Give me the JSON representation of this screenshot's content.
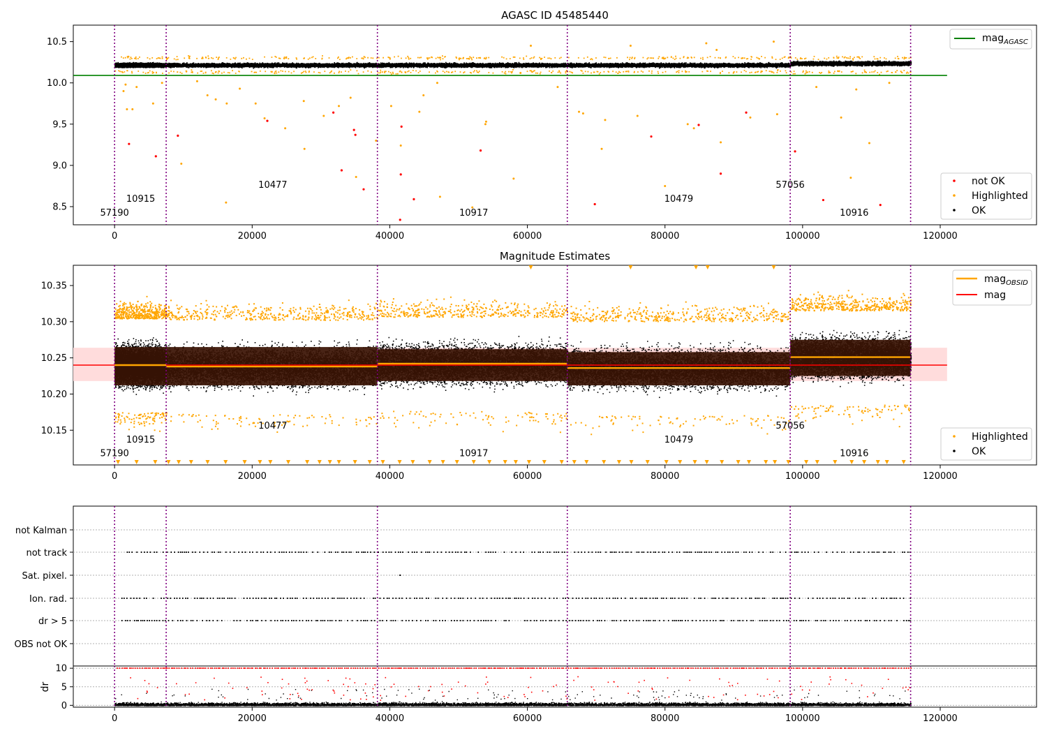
{
  "figure_title": "AGASC ID 45485440",
  "chart_data": [
    {
      "type": "scatter",
      "title": "",
      "xlim": [
        -6000,
        134000
      ],
      "ylim": [
        8.28,
        10.7
      ],
      "xticks": [
        0,
        20000,
        40000,
        60000,
        80000,
        100000,
        120000
      ],
      "xtick_labels": [
        "0",
        "20000",
        "40000",
        "60000",
        "80000",
        "100000",
        "120000"
      ],
      "yticks": [
        8.5,
        9.0,
        9.5,
        10.0,
        10.5
      ],
      "ytick_labels": [
        "8.5",
        "9.0",
        "9.5",
        "10.0",
        "10.5"
      ],
      "obsid_boundaries": [
        0,
        7500,
        38200,
        65800,
        98200,
        115700
      ],
      "obsid_labels": [
        {
          "text": "57190",
          "x": 0,
          "y": 8.39
        },
        {
          "text": "10915",
          "x": 3800,
          "y": 8.56
        },
        {
          "text": "10477",
          "x": 23000,
          "y": 8.73
        },
        {
          "text": "10917",
          "x": 52200,
          "y": 8.39
        },
        {
          "text": "10479",
          "x": 82000,
          "y": 8.56
        },
        {
          "text": "57056",
          "x": 98200,
          "y": 8.73
        },
        {
          "text": "10916",
          "x": 107500,
          "y": 8.39
        }
      ],
      "mag_agasc": 10.09,
      "band_center": 10.22,
      "band_half_width": 0.04,
      "series": [
        {
          "name": "mag$_{AGASC}$",
          "legend_label": "mag",
          "legend_sub": "AGASC",
          "color": "#008000",
          "kind": "line"
        },
        {
          "name": "not OK",
          "color": "#ff0000",
          "kind": "points",
          "points": [
            [
              2100,
              9.26
            ],
            [
              6000,
              9.11
            ],
            [
              9200,
              9.36
            ],
            [
              22200,
              9.54
            ],
            [
              31800,
              9.64
            ],
            [
              33000,
              8.94
            ],
            [
              34800,
              9.43
            ],
            [
              35000,
              9.37
            ],
            [
              36200,
              8.71
            ],
            [
              41500,
              8.34
            ],
            [
              41600,
              8.89
            ],
            [
              41700,
              9.47
            ],
            [
              43500,
              8.59
            ],
            [
              53200,
              9.18
            ],
            [
              69800,
              8.53
            ],
            [
              78000,
              9.35
            ],
            [
              84900,
              9.49
            ],
            [
              88100,
              8.9
            ],
            [
              91800,
              9.64
            ],
            [
              98900,
              9.17
            ],
            [
              103000,
              8.58
            ],
            [
              111300,
              8.52
            ]
          ]
        },
        {
          "name": "Highlighted",
          "color": "#ffa500",
          "kind": "points",
          "points": [
            [
              1300,
              9.9
            ],
            [
              1600,
              9.98
            ],
            [
              1800,
              9.68
            ],
            [
              2600,
              9.68
            ],
            [
              3200,
              9.95
            ],
            [
              5600,
              9.75
            ],
            [
              6900,
              10.0
            ],
            [
              9700,
              9.02
            ],
            [
              12000,
              10.02
            ],
            [
              13500,
              9.85
            ],
            [
              14700,
              9.8
            ],
            [
              16200,
              8.55
            ],
            [
              16300,
              9.75
            ],
            [
              18200,
              9.93
            ],
            [
              20500,
              9.75
            ],
            [
              21800,
              9.57
            ],
            [
              24800,
              9.45
            ],
            [
              27500,
              9.78
            ],
            [
              27600,
              9.2
            ],
            [
              30400,
              9.6
            ],
            [
              32600,
              9.72
            ],
            [
              34300,
              9.82
            ],
            [
              35100,
              8.86
            ],
            [
              38000,
              9.3
            ],
            [
              40200,
              9.72
            ],
            [
              41600,
              9.24
            ],
            [
              44300,
              9.65
            ],
            [
              44900,
              9.85
            ],
            [
              46900,
              10.0
            ],
            [
              47300,
              8.62
            ],
            [
              52000,
              8.49
            ],
            [
              53900,
              9.5
            ],
            [
              54000,
              9.53
            ],
            [
              58000,
              8.84
            ],
            [
              59000,
              10.12
            ],
            [
              60500,
              10.45
            ],
            [
              64400,
              9.95
            ],
            [
              67500,
              9.65
            ],
            [
              68100,
              9.63
            ],
            [
              70800,
              9.2
            ],
            [
              71300,
              9.55
            ],
            [
              75000,
              10.45
            ],
            [
              76000,
              9.6
            ],
            [
              80000,
              8.75
            ],
            [
              83300,
              9.5
            ],
            [
              84200,
              9.45
            ],
            [
              86000,
              10.48
            ],
            [
              87500,
              10.4
            ],
            [
              88100,
              9.28
            ],
            [
              92400,
              9.58
            ],
            [
              95800,
              10.5
            ],
            [
              96300,
              9.62
            ],
            [
              102000,
              9.95
            ],
            [
              105600,
              9.58
            ],
            [
              107000,
              8.85
            ],
            [
              107800,
              9.92
            ],
            [
              109700,
              9.27
            ],
            [
              112600,
              10.0
            ]
          ]
        },
        {
          "name": "OK",
          "color": "#000000",
          "kind": "band"
        }
      ],
      "legends": [
        [
          "mag$_{AGASC}$"
        ],
        [
          "not OK",
          "Highlighted",
          "OK"
        ]
      ]
    },
    {
      "type": "scatter",
      "title": "Magnitude Estimates",
      "xlim": [
        -6000,
        134000
      ],
      "ylim": [
        10.102,
        10.378
      ],
      "xticks": [
        0,
        20000,
        40000,
        60000,
        80000,
        100000,
        120000
      ],
      "xtick_labels": [
        "0",
        "20000",
        "40000",
        "60000",
        "80000",
        "100000",
        "120000"
      ],
      "yticks": [
        10.15,
        10.2,
        10.25,
        10.3,
        10.35
      ],
      "ytick_labels": [
        "10.15",
        "10.20",
        "10.25",
        "10.30",
        "10.35"
      ],
      "obsid_labels": [
        {
          "text": "57190",
          "x": 0,
          "y": 10.114
        },
        {
          "text": "10915",
          "x": 3800,
          "y": 10.133
        },
        {
          "text": "10477",
          "x": 23000,
          "y": 10.152
        },
        {
          "text": "10917",
          "x": 52200,
          "y": 10.114
        },
        {
          "text": "10479",
          "x": 82000,
          "y": 10.133
        },
        {
          "text": "57056",
          "x": 98200,
          "y": 10.152
        },
        {
          "text": "10916",
          "x": 107500,
          "y": 10.114
        }
      ],
      "mag": 10.24,
      "mag_band": [
        10.218,
        10.264
      ],
      "obsid_segments": [
        {
          "x0": 0,
          "x1": 7500,
          "mag": 10.24,
          "band": [
            10.212,
            10.265
          ]
        },
        {
          "x0": 7500,
          "x1": 38200,
          "mag": 10.238,
          "band": [
            10.212,
            10.265
          ]
        },
        {
          "x0": 38200,
          "x1": 65800,
          "mag": 10.242,
          "band": [
            10.218,
            10.262
          ]
        },
        {
          "x0": 65800,
          "x1": 98200,
          "mag": 10.236,
          "band": [
            10.212,
            10.258
          ]
        },
        {
          "x0": 98200,
          "x1": 115700,
          "mag": 10.251,
          "band": [
            10.225,
            10.275
          ]
        }
      ],
      "series": [
        {
          "name": "mag$_{OBSID}$",
          "legend_label": "mag",
          "legend_sub": "OBSID",
          "color": "#ffa500",
          "kind": "line"
        },
        {
          "name": "mag",
          "color": "#ff0000",
          "kind": "line"
        },
        {
          "name": "Highlighted",
          "color": "#ffa500",
          "kind": "points"
        },
        {
          "name": "OK",
          "color": "#000000",
          "kind": "band"
        }
      ],
      "legends": [
        [
          "mag$_{OBSID}$",
          "mag"
        ],
        [
          "Highlighted",
          "OK"
        ]
      ]
    },
    {
      "type": "scatter",
      "title": "",
      "xlim": [
        -6000,
        134000
      ],
      "categories": [
        "not Kalman",
        "not track",
        "Sat. pixel.",
        "Ion. rad.",
        "dr > 5",
        "OBS not OK"
      ],
      "flag_rows": {
        "not Kalman": [],
        "not track": [
          [
            1500,
            115700
          ]
        ],
        "Sat. pixel.": [
          [
            41400,
            41400
          ]
        ],
        "Ion. rad.": [
          [
            1000,
            38000
          ],
          [
            38500,
            115700
          ]
        ],
        "dr > 5": [
          [
            1000,
            38000
          ],
          [
            38500,
            115700
          ]
        ],
        "OBS not OK": []
      },
      "grid": true
    },
    {
      "type": "scatter",
      "title": "",
      "xlim": [
        -6000,
        134000
      ],
      "ylim": [
        -0.5,
        10.6
      ],
      "xticks": [
        0,
        20000,
        40000,
        60000,
        80000,
        100000,
        120000
      ],
      "xtick_labels": [
        "0",
        "20000",
        "40000",
        "60000",
        "80000",
        "100000",
        "120000"
      ],
      "yticks": [
        0,
        5,
        10
      ],
      "ytick_labels": [
        "0",
        "5",
        "10"
      ],
      "ylabel": "dr",
      "grid": true,
      "dr_cap": 10
    }
  ]
}
